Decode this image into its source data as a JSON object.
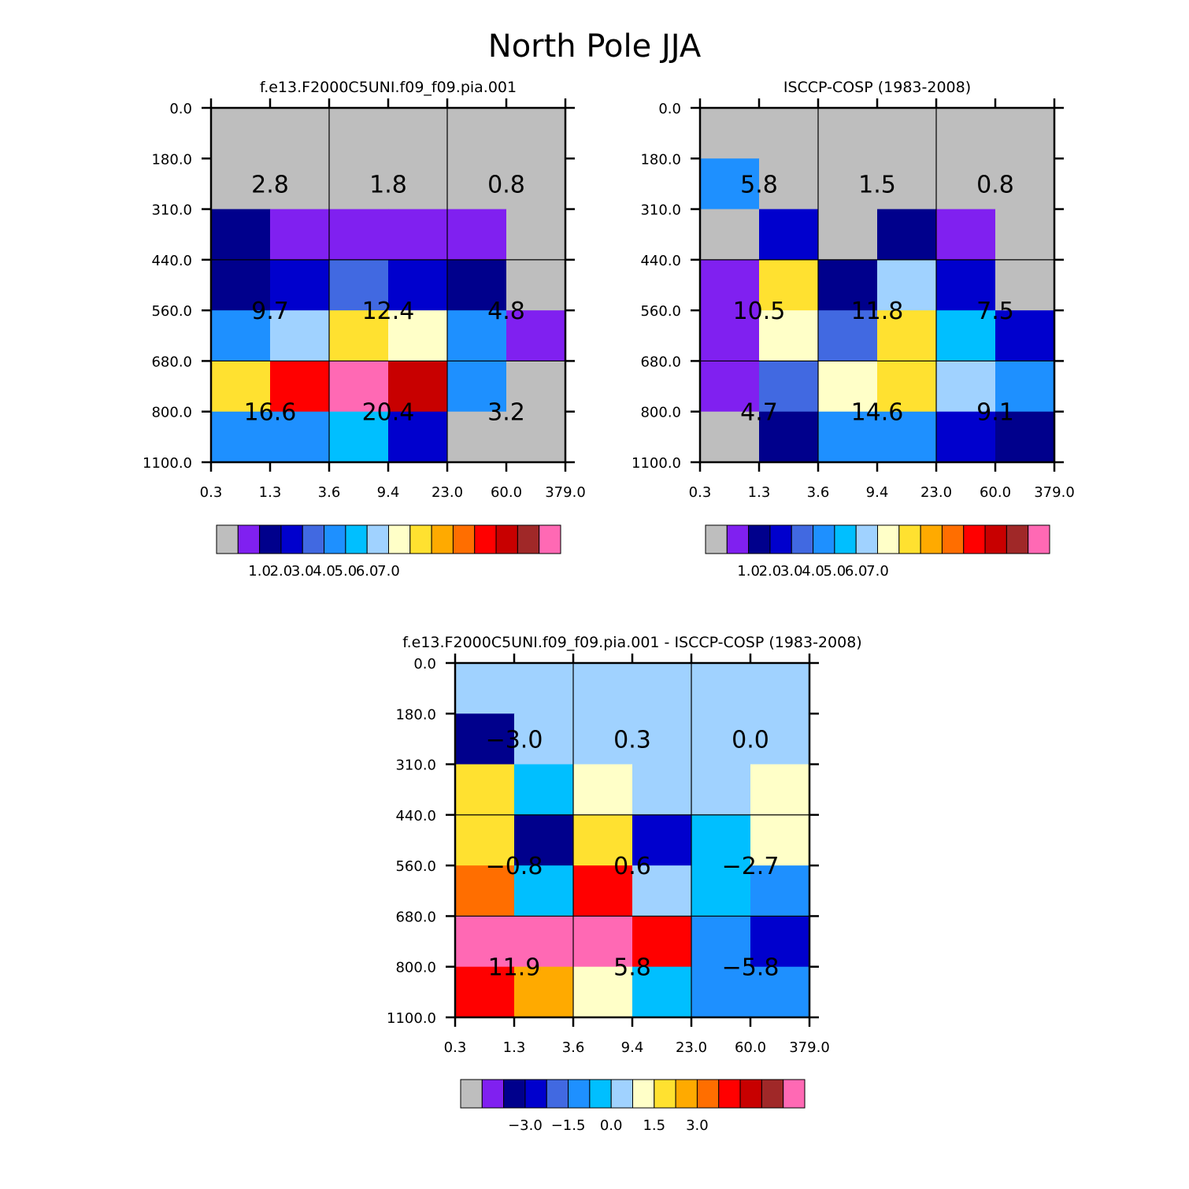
{
  "title": "North Pole JJA",
  "palette": [
    "#BEBEBE",
    "#8020F0",
    "#00008C",
    "#0000CD",
    "#4169E1",
    "#1E90FF",
    "#00BFFF",
    "#A0D2FF",
    "#FFFFC8",
    "#FFE130",
    "#FFAA00",
    "#FF6E00",
    "#FF0000",
    "#C80000",
    "#A02828",
    "#FF69B4"
  ],
  "chart_data": [
    {
      "type": "heatmap",
      "name": "model",
      "title": "f.e13.F2000C5UNI.f09_f09.pia.001",
      "xlabel": "",
      "ylabel": "",
      "x_ticks": [
        "0.3",
        "1.3",
        "3.6",
        "9.4",
        "23.0",
        "60.0",
        "379.0"
      ],
      "y_ticks": [
        "0.0",
        "180.0",
        "310.0",
        "440.0",
        "560.0",
        "680.0",
        "800.0",
        "1100.0"
      ],
      "cells": [
        [
          0,
          0,
          0,
          0,
          0,
          0
        ],
        [
          0,
          0,
          0,
          0,
          0,
          0
        ],
        [
          2,
          1,
          1,
          1,
          1,
          0
        ],
        [
          2,
          3,
          4,
          3,
          2,
          0
        ],
        [
          5,
          7,
          9,
          8,
          5,
          1
        ],
        [
          9,
          12,
          15,
          13,
          5,
          0
        ],
        [
          5,
          5,
          6,
          3,
          0,
          0
        ]
      ],
      "labels": [
        {
          "text": "2.8",
          "col": 1,
          "row": 1.5
        },
        {
          "text": "1.8",
          "col": 3,
          "row": 1.5
        },
        {
          "text": "0.8",
          "col": 5,
          "row": 1.5
        },
        {
          "text": "9.7",
          "col": 1,
          "row": 4
        },
        {
          "text": "12.4",
          "col": 3,
          "row": 4
        },
        {
          "text": "4.8",
          "col": 5,
          "row": 4
        },
        {
          "text": "16.6",
          "col": 1,
          "row": 6
        },
        {
          "text": "20.4",
          "col": 3,
          "row": 6
        },
        {
          "text": "3.2",
          "col": 5,
          "row": 6
        }
      ],
      "colorbar": {
        "labels": [
          "1.0",
          "2.0",
          "3.0",
          "4.0",
          "5.0",
          "6.0",
          "7.0"
        ]
      }
    },
    {
      "type": "heatmap",
      "name": "obs",
      "title": "ISCCP-COSP (1983-2008)",
      "xlabel": "",
      "ylabel": "",
      "x_ticks": [
        "0.3",
        "1.3",
        "3.6",
        "9.4",
        "23.0",
        "60.0",
        "379.0"
      ],
      "y_ticks": [
        "0.0",
        "180.0",
        "310.0",
        "440.0",
        "560.0",
        "680.0",
        "800.0",
        "1100.0"
      ],
      "cells": [
        [
          0,
          0,
          0,
          0,
          0,
          0
        ],
        [
          5,
          0,
          0,
          0,
          0,
          0
        ],
        [
          0,
          3,
          0,
          2,
          1,
          0
        ],
        [
          1,
          9,
          2,
          7,
          3,
          0
        ],
        [
          1,
          8,
          4,
          9,
          6,
          3
        ],
        [
          1,
          4,
          8,
          9,
          7,
          5
        ],
        [
          0,
          2,
          5,
          5,
          3,
          2
        ]
      ],
      "labels": [
        {
          "text": "5.8",
          "col": 1,
          "row": 1.5
        },
        {
          "text": "1.5",
          "col": 3,
          "row": 1.5
        },
        {
          "text": "0.8",
          "col": 5,
          "row": 1.5
        },
        {
          "text": "10.5",
          "col": 1,
          "row": 4
        },
        {
          "text": "11.8",
          "col": 3,
          "row": 4
        },
        {
          "text": "7.5",
          "col": 5,
          "row": 4
        },
        {
          "text": "4.7",
          "col": 1,
          "row": 6
        },
        {
          "text": "14.6",
          "col": 3,
          "row": 6
        },
        {
          "text": "9.1",
          "col": 5,
          "row": 6
        }
      ],
      "colorbar": {
        "labels": [
          "1.0",
          "2.0",
          "3.0",
          "4.0",
          "5.0",
          "6.0",
          "7.0"
        ]
      }
    },
    {
      "type": "heatmap",
      "name": "diff",
      "title": "f.e13.F2000C5UNI.f09_f09.pia.001 - ISCCP-COSP (1983-2008)",
      "xlabel": "",
      "ylabel": "",
      "x_ticks": [
        "0.3",
        "1.3",
        "3.6",
        "9.4",
        "23.0",
        "60.0",
        "379.0"
      ],
      "y_ticks": [
        "0.0",
        "180.0",
        "310.0",
        "440.0",
        "560.0",
        "680.0",
        "800.0",
        "1100.0"
      ],
      "cells": [
        [
          7,
          7,
          7,
          7,
          7,
          7
        ],
        [
          2,
          7,
          7,
          7,
          7,
          7
        ],
        [
          9,
          6,
          8,
          7,
          7,
          8
        ],
        [
          9,
          2,
          9,
          3,
          6,
          8
        ],
        [
          11,
          6,
          12,
          7,
          6,
          5
        ],
        [
          15,
          15,
          15,
          12,
          5,
          3
        ],
        [
          12,
          10,
          8,
          6,
          5,
          5
        ]
      ],
      "labels": [
        {
          "text": "-3.0",
          "col": 1,
          "row": 1.5
        },
        {
          "text": "0.3",
          "col": 3,
          "row": 1.5
        },
        {
          "text": "0.0",
          "col": 5,
          "row": 1.5
        },
        {
          "text": "-0.8",
          "col": 1,
          "row": 4
        },
        {
          "text": "0.6",
          "col": 3,
          "row": 4
        },
        {
          "text": "-2.7",
          "col": 5,
          "row": 4
        },
        {
          "text": "11.9",
          "col": 1,
          "row": 6
        },
        {
          "text": "5.8",
          "col": 3,
          "row": 6
        },
        {
          "text": "-5.8",
          "col": 5,
          "row": 6
        }
      ],
      "colorbar": {
        "labels": [
          "-3.0",
          "-1.5",
          "0.0",
          "1.5",
          "3.0"
        ]
      }
    }
  ]
}
